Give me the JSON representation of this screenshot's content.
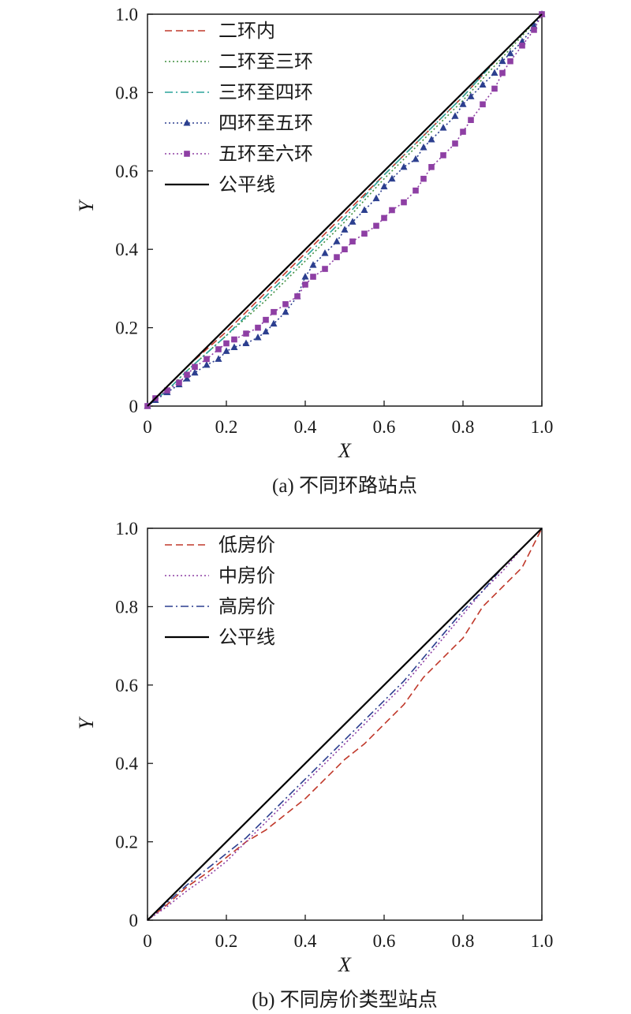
{
  "chart_data": [
    {
      "type": "line",
      "caption": "(a) 不同环路站点",
      "xlabel": "X",
      "ylabel": "Y",
      "xlim": [
        0,
        1.0
      ],
      "ylim": [
        0,
        1.0
      ],
      "xticks": [
        "0",
        "0.2",
        "0.4",
        "0.6",
        "0.8",
        "1.0"
      ],
      "yticks": [
        "0",
        "0.2",
        "0.4",
        "0.6",
        "0.8",
        "1.0"
      ],
      "legend_position": "top-left",
      "grid": false,
      "series": [
        {
          "name": "二环内",
          "color": "#c0392b",
          "style": "dashed",
          "marker": "none",
          "x": [
            0,
            0.05,
            0.1,
            0.2,
            0.3,
            0.4,
            0.5,
            0.6,
            0.7,
            0.8,
            0.9,
            1.0
          ],
          "y": [
            0,
            0.05,
            0.1,
            0.19,
            0.29,
            0.39,
            0.49,
            0.59,
            0.69,
            0.79,
            0.9,
            1.0
          ]
        },
        {
          "name": "二环至三环",
          "color": "#3f8f3f",
          "style": "dotted",
          "marker": "none",
          "x": [
            0,
            0.05,
            0.1,
            0.2,
            0.3,
            0.4,
            0.5,
            0.6,
            0.7,
            0.8,
            0.9,
            1.0
          ],
          "y": [
            0,
            0.04,
            0.09,
            0.18,
            0.27,
            0.37,
            0.47,
            0.58,
            0.68,
            0.78,
            0.89,
            1.0
          ]
        },
        {
          "name": "三环至四环",
          "color": "#2aa39a",
          "style": "dashdot",
          "marker": "none",
          "x": [
            0,
            0.05,
            0.1,
            0.2,
            0.3,
            0.4,
            0.5,
            0.6,
            0.7,
            0.8,
            0.9,
            1.0
          ],
          "y": [
            0,
            0.04,
            0.09,
            0.18,
            0.28,
            0.38,
            0.48,
            0.59,
            0.69,
            0.79,
            0.9,
            1.0
          ]
        },
        {
          "name": "四环至五环",
          "color": "#2c3f8f",
          "style": "dotted",
          "marker": "triangle",
          "x": [
            0,
            0.02,
            0.05,
            0.08,
            0.1,
            0.12,
            0.15,
            0.18,
            0.2,
            0.22,
            0.25,
            0.28,
            0.3,
            0.32,
            0.35,
            0.38,
            0.4,
            0.42,
            0.45,
            0.48,
            0.5,
            0.52,
            0.55,
            0.58,
            0.6,
            0.62,
            0.65,
            0.68,
            0.7,
            0.72,
            0.75,
            0.78,
            0.8,
            0.82,
            0.85,
            0.88,
            0.9,
            0.92,
            0.95,
            0.98,
            1.0
          ],
          "y": [
            0,
            0.015,
            0.035,
            0.055,
            0.07,
            0.085,
            0.105,
            0.12,
            0.14,
            0.15,
            0.16,
            0.175,
            0.19,
            0.21,
            0.24,
            0.28,
            0.33,
            0.36,
            0.39,
            0.42,
            0.45,
            0.47,
            0.5,
            0.53,
            0.56,
            0.58,
            0.61,
            0.63,
            0.66,
            0.68,
            0.71,
            0.74,
            0.77,
            0.79,
            0.82,
            0.85,
            0.88,
            0.9,
            0.93,
            0.97,
            1.0
          ]
        },
        {
          "name": "五环至六环",
          "color": "#8e3fa4",
          "style": "dotted",
          "marker": "square",
          "x": [
            0,
            0.02,
            0.05,
            0.08,
            0.1,
            0.12,
            0.15,
            0.18,
            0.2,
            0.22,
            0.25,
            0.28,
            0.3,
            0.32,
            0.35,
            0.38,
            0.4,
            0.42,
            0.45,
            0.48,
            0.5,
            0.52,
            0.55,
            0.58,
            0.6,
            0.62,
            0.65,
            0.68,
            0.7,
            0.72,
            0.75,
            0.78,
            0.8,
            0.82,
            0.85,
            0.88,
            0.9,
            0.92,
            0.95,
            0.98,
            1.0
          ],
          "y": [
            0,
            0.02,
            0.04,
            0.06,
            0.08,
            0.1,
            0.12,
            0.145,
            0.16,
            0.17,
            0.185,
            0.2,
            0.22,
            0.24,
            0.26,
            0.28,
            0.31,
            0.33,
            0.35,
            0.38,
            0.4,
            0.42,
            0.44,
            0.46,
            0.48,
            0.5,
            0.52,
            0.55,
            0.58,
            0.61,
            0.64,
            0.67,
            0.7,
            0.73,
            0.77,
            0.81,
            0.85,
            0.88,
            0.92,
            0.96,
            1.0
          ]
        },
        {
          "name": "公平线",
          "color": "#000000",
          "style": "solid",
          "marker": "none",
          "x": [
            0,
            1.0
          ],
          "y": [
            0,
            1.0
          ]
        }
      ]
    },
    {
      "type": "line",
      "caption": "(b) 不同房价类型站点",
      "xlabel": "X",
      "ylabel": "Y",
      "xlim": [
        0,
        1.0
      ],
      "ylim": [
        0,
        1.0
      ],
      "xticks": [
        "0",
        "0.2",
        "0.4",
        "0.6",
        "0.8",
        "1.0"
      ],
      "yticks": [
        "0",
        "0.2",
        "0.4",
        "0.6",
        "0.8",
        "1.0"
      ],
      "legend_position": "top-left",
      "grid": false,
      "series": [
        {
          "name": "低房价",
          "color": "#c0392b",
          "style": "dashed",
          "marker": "none",
          "x": [
            0,
            0.05,
            0.1,
            0.15,
            0.2,
            0.25,
            0.3,
            0.35,
            0.4,
            0.45,
            0.5,
            0.55,
            0.6,
            0.65,
            0.7,
            0.75,
            0.8,
            0.85,
            0.9,
            0.95,
            1.0
          ],
          "y": [
            0,
            0.04,
            0.085,
            0.12,
            0.16,
            0.2,
            0.23,
            0.27,
            0.31,
            0.36,
            0.41,
            0.45,
            0.5,
            0.55,
            0.62,
            0.67,
            0.72,
            0.8,
            0.85,
            0.9,
            1.0
          ]
        },
        {
          "name": "中房价",
          "color": "#8e3fa4",
          "style": "dotted",
          "marker": "none",
          "x": [
            0,
            0.05,
            0.1,
            0.15,
            0.2,
            0.25,
            0.3,
            0.35,
            0.4,
            0.45,
            0.5,
            0.55,
            0.6,
            0.65,
            0.7,
            0.75,
            0.8,
            0.85,
            0.9,
            0.95,
            1.0
          ],
          "y": [
            0,
            0.035,
            0.075,
            0.11,
            0.15,
            0.2,
            0.25,
            0.3,
            0.35,
            0.4,
            0.45,
            0.5,
            0.55,
            0.6,
            0.66,
            0.72,
            0.78,
            0.84,
            0.89,
            0.95,
            1.0
          ]
        },
        {
          "name": "高房价",
          "color": "#2c3f8f",
          "style": "dashdot",
          "marker": "none",
          "x": [
            0,
            0.05,
            0.1,
            0.15,
            0.2,
            0.25,
            0.3,
            0.35,
            0.4,
            0.45,
            0.5,
            0.55,
            0.6,
            0.65,
            0.7,
            0.75,
            0.8,
            0.85,
            0.9,
            0.95,
            1.0
          ],
          "y": [
            0,
            0.045,
            0.09,
            0.13,
            0.17,
            0.21,
            0.26,
            0.31,
            0.36,
            0.41,
            0.46,
            0.51,
            0.56,
            0.61,
            0.67,
            0.73,
            0.79,
            0.84,
            0.9,
            0.95,
            1.0
          ]
        },
        {
          "name": "公平线",
          "color": "#000000",
          "style": "solid",
          "marker": "none",
          "x": [
            0,
            1.0
          ],
          "y": [
            0,
            1.0
          ]
        }
      ]
    }
  ]
}
